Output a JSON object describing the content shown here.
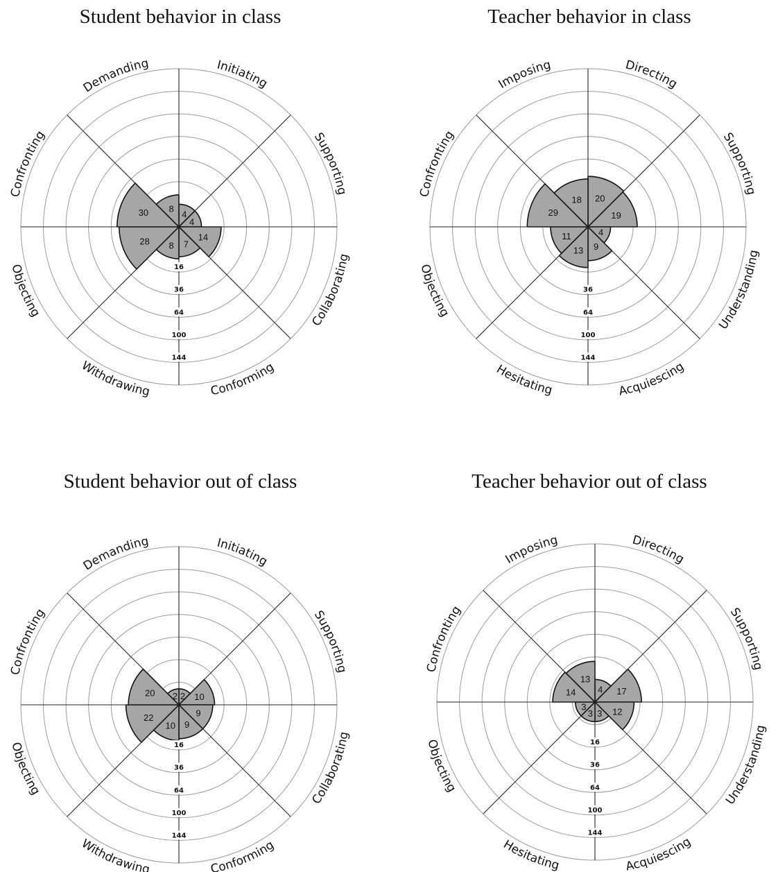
{
  "colors": {
    "sector_fill": "#a6a6a6",
    "ring": "#9a9a9a",
    "axis": "#222222"
  },
  "chart_data": [
    {
      "type": "rose",
      "title": "Student behavior in class",
      "scale": "sqrt",
      "ring_ticks": [
        16,
        36,
        64,
        100,
        144
      ],
      "categories": [
        "Initiating",
        "Supporting",
        "Collaborating",
        "Conforming",
        "Withdrawing",
        "Objecting",
        "Confronting",
        "Demanding"
      ],
      "values": [
        4,
        4,
        14,
        7,
        8,
        28,
        30,
        8
      ]
    },
    {
      "type": "rose",
      "title": "Teacher behavior in class",
      "scale": "sqrt",
      "ring_ticks": [
        36,
        64,
        100,
        144
      ],
      "categories": [
        "Directing",
        "Supporting",
        "Understanding",
        "Acquiescing",
        "Hesitating",
        "Objecting",
        "Confronting",
        "Imposing"
      ],
      "values": [
        20,
        19,
        4,
        9,
        13,
        11,
        29,
        18
      ]
    },
    {
      "type": "rose",
      "title": "Student behavior out of class",
      "scale": "sqrt",
      "ring_ticks": [
        16,
        36,
        64,
        100,
        144
      ],
      "categories": [
        "Initiating",
        "Supporting",
        "Collaborating",
        "Conforming",
        "Withdrawing",
        "Objecting",
        "Confronting",
        "Demanding"
      ],
      "values": [
        2,
        10,
        9,
        9,
        10,
        22,
        20,
        2
      ]
    },
    {
      "type": "rose",
      "title": "Teacher behavior out of class",
      "scale": "sqrt",
      "ring_ticks": [
        16,
        36,
        64,
        100,
        144
      ],
      "categories": [
        "Directing",
        "Supporting",
        "Understanding",
        "Acquiescing",
        "Hesitating",
        "Objecting",
        "Confronting",
        "Imposing"
      ],
      "values": [
        4,
        17,
        12,
        3,
        3,
        3,
        14,
        13
      ]
    }
  ]
}
